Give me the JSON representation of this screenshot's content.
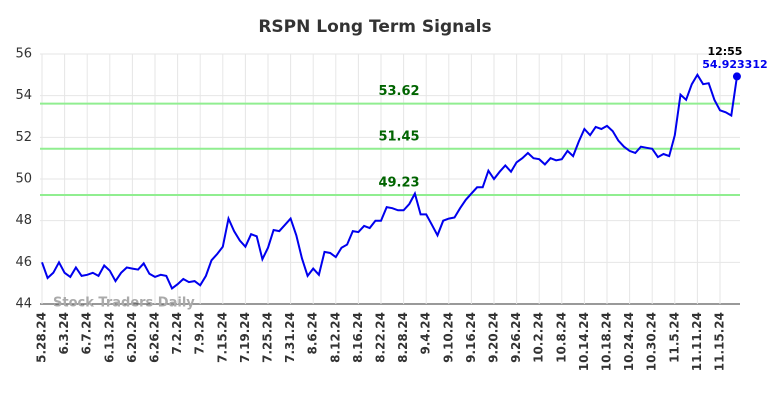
{
  "chart_data": {
    "type": "line",
    "title": "RSPN Long Term Signals",
    "categories": [
      "5.28.24",
      null,
      null,
      null,
      "6.3.24",
      null,
      null,
      null,
      "6.7.24",
      null,
      null,
      null,
      "6.13.24",
      null,
      null,
      null,
      "6.20.24",
      null,
      null,
      null,
      "6.26.24",
      null,
      null,
      null,
      "7.2.24",
      null,
      null,
      null,
      "7.9.24",
      null,
      null,
      null,
      "7.15.24",
      null,
      null,
      null,
      "7.19.24",
      null,
      null,
      null,
      "7.25.24",
      null,
      null,
      null,
      "7.31.24",
      null,
      null,
      null,
      "8.6.24",
      null,
      null,
      null,
      "8.12.24",
      null,
      null,
      null,
      "8.16.24",
      null,
      null,
      null,
      "8.22.24",
      null,
      null,
      null,
      "8.28.24",
      null,
      null,
      null,
      "9.4.24",
      null,
      null,
      null,
      "9.10.24",
      null,
      null,
      null,
      "9.16.24",
      null,
      null,
      null,
      "9.20.24",
      null,
      null,
      null,
      "9.26.24",
      null,
      null,
      null,
      "10.2.24",
      null,
      null,
      null,
      "10.8.24",
      null,
      null,
      null,
      "10.14.24",
      null,
      null,
      null,
      "10.18.24",
      null,
      null,
      null,
      "10.24.24",
      null,
      null,
      null,
      "10.30.24",
      null,
      null,
      null,
      "11.5.24",
      null,
      null,
      null,
      "11.11.24",
      null,
      null,
      null,
      "11.15.24",
      null,
      null,
      null
    ],
    "values": [
      46.0,
      45.25,
      45.5,
      46.0,
      45.5,
      45.3,
      45.75,
      45.35,
      45.4,
      45.5,
      45.35,
      45.85,
      45.6,
      45.1,
      45.5,
      45.75,
      45.7,
      45.65,
      45.95,
      45.45,
      45.3,
      45.4,
      45.35,
      44.75,
      44.95,
      45.2,
      45.05,
      45.1,
      44.9,
      45.35,
      46.1,
      46.4,
      46.75,
      48.1,
      47.5,
      47.05,
      46.75,
      47.35,
      47.25,
      46.15,
      46.7,
      47.55,
      47.5,
      47.8,
      48.1,
      47.3,
      46.2,
      45.35,
      45.7,
      45.4,
      46.5,
      46.45,
      46.25,
      46.7,
      46.85,
      47.5,
      47.45,
      47.75,
      47.65,
      48.0,
      48.0,
      48.65,
      48.6,
      48.5,
      48.5,
      48.8,
      49.3,
      48.3,
      48.3,
      47.8,
      47.3,
      48.0,
      48.1,
      48.15,
      48.6,
      49.0,
      49.3,
      49.6,
      49.6,
      50.4,
      50.0,
      50.35,
      50.65,
      50.35,
      50.8,
      51.0,
      51.25,
      51.0,
      50.95,
      50.7,
      51.0,
      50.9,
      50.95,
      51.35,
      51.1,
      51.8,
      52.4,
      52.1,
      52.5,
      52.4,
      52.55,
      52.3,
      51.85,
      51.55,
      51.35,
      51.25,
      51.55,
      51.5,
      51.45,
      51.05,
      51.2,
      51.1,
      52.1,
      54.05,
      53.8,
      54.55,
      55.0,
      54.55,
      54.6,
      53.8,
      53.3,
      53.2,
      53.05,
      54.923312
    ],
    "color": "#0000ee",
    "ylim": [
      44,
      56
    ],
    "yticks": [
      44,
      46,
      48,
      50,
      52,
      54,
      56
    ],
    "grid": true,
    "hlines": [
      53.62,
      51.45,
      49.23
    ],
    "hline_color": "#90ee90",
    "hline_label_color": "#006400",
    "last_time": "12:55",
    "watermark": "Stock Traders Daily"
  }
}
